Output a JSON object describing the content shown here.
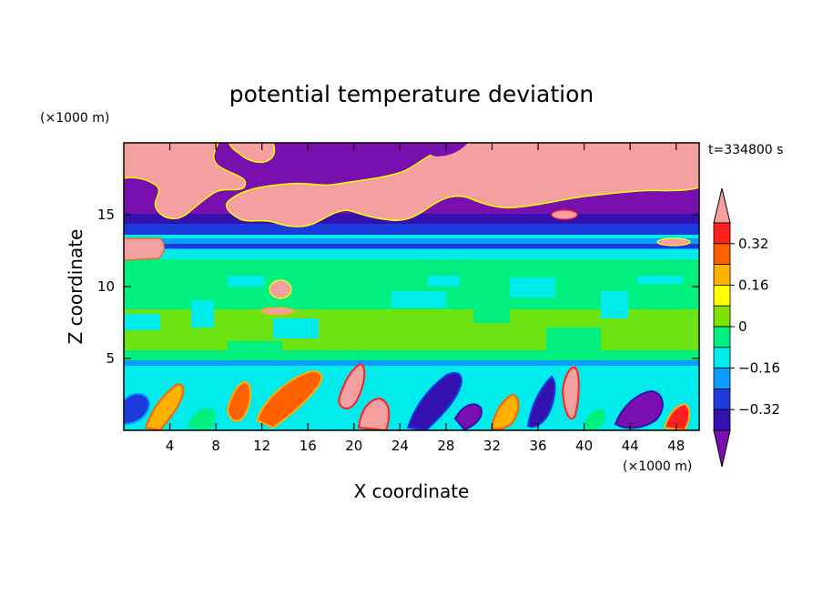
{
  "chart_data": {
    "type": "heatmap",
    "title": "potential temperature deviation",
    "xlabel": "X coordinate",
    "ylabel": "Z coordinate",
    "x_units": "(×1000 m)",
    "y_units": "(×1000 m)",
    "time_label": "t=334800 s",
    "xlim": [
      0,
      50
    ],
    "ylim": [
      0,
      20
    ],
    "xticks": [
      4,
      8,
      12,
      16,
      20,
      24,
      28,
      32,
      36,
      40,
      44,
      48
    ],
    "yticks": [
      5,
      10,
      15
    ],
    "colorbar": {
      "levels": [
        -0.4,
        -0.32,
        -0.24,
        -0.16,
        -0.08,
        0,
        0.08,
        0.16,
        0.24,
        0.32,
        0.4
      ],
      "colors": [
        "#7a0fb0",
        "#3510b0",
        "#1d3bdc",
        "#0a9dff",
        "#00ecec",
        "#00f080",
        "#80e000",
        "#ffff00",
        "#ffb000",
        "#ff6000",
        "#ff2020",
        "#f4a0a0"
      ],
      "labels": [
        "0.32",
        "0.16",
        "0",
        "−0.16",
        "−0.32"
      ],
      "label_values": [
        0.32,
        0.16,
        0,
        -0.16,
        -0.32
      ],
      "extend": "both"
    },
    "field_regions": [
      {
        "x": [
          0,
          50
        ],
        "z": [
          0,
          4.8
        ],
        "level": "mixed convective eddies",
        "color": "#00f080"
      },
      {
        "x": [
          0,
          50
        ],
        "z": [
          4.8,
          11
        ],
        "level": "0 to 0.08",
        "color": "#00f080"
      },
      {
        "x": [
          0,
          50
        ],
        "z": [
          11,
          13
        ],
        "level": "−0.08 to 0",
        "color": "#00ecec"
      },
      {
        "x": [
          0,
          50
        ],
        "z": [
          13,
          14
        ],
        "level": "−0.32 to −0.24",
        "color": "#3510b0"
      },
      {
        "x": [
          0,
          50
        ],
        "z": [
          14,
          20
        ],
        "level": "mixed > 0.4 and < −0.4",
        "color": "#7a0fb0"
      }
    ]
  }
}
